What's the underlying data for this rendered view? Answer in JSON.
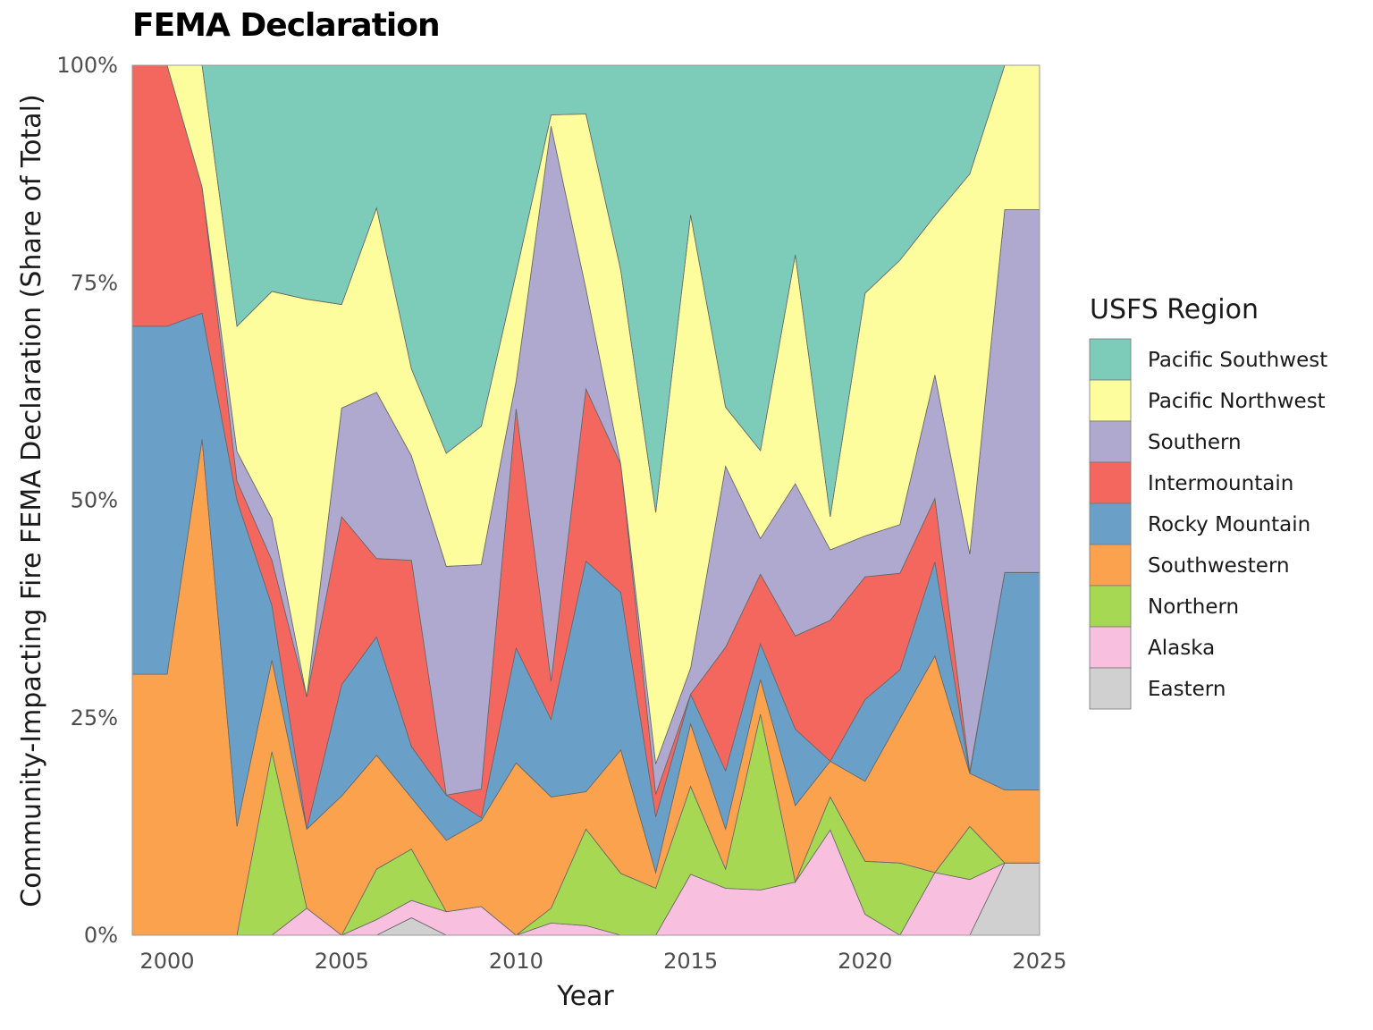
{
  "chart_data": {
    "type": "area",
    "stacked": true,
    "normalized": true,
    "title": "FEMA Declaration",
    "xlabel": "Year",
    "ylabel": "Community-Impacting Fire FEMA Declaration (Share of Total)",
    "xlim": [
      1999,
      2025
    ],
    "ylim": [
      0,
      1
    ],
    "x": [
      1999,
      2000,
      2001,
      2002,
      2003,
      2004,
      2005,
      2006,
      2007,
      2008,
      2009,
      2010,
      2011,
      2012,
      2013,
      2014,
      2015,
      2016,
      2017,
      2018,
      2019,
      2020,
      2021,
      2022,
      2023,
      2024,
      2025
    ],
    "x_ticks": [
      2000,
      2005,
      2010,
      2015,
      2020,
      2025
    ],
    "y_ticks": [
      0,
      0.25,
      0.5,
      0.75,
      1
    ],
    "y_tick_labels": [
      "0%",
      "25%",
      "50%",
      "75%",
      "100%"
    ],
    "grid": false,
    "legend_title": "USFS Region",
    "legend_position": "right",
    "series": [
      {
        "name": "Eastern",
        "color": "#d0d0d0",
        "values": [
          0,
          0,
          0,
          0,
          0,
          0,
          0,
          0,
          0.02,
          0,
          0,
          0,
          0,
          0,
          0,
          0,
          0,
          0,
          0,
          0,
          0,
          0,
          0,
          0,
          0,
          0.083,
          0.083
        ]
      },
      {
        "name": "Alaska",
        "color": "#f8c0de",
        "values": [
          0,
          0,
          0,
          0,
          0,
          0.031,
          0,
          0.018,
          0.02,
          0.027,
          0.033,
          0,
          0.014,
          0.011,
          0,
          0,
          0.07,
          0.054,
          0.052,
          0.061,
          0.121,
          0.024,
          0,
          0.072,
          0.064,
          0,
          0
        ]
      },
      {
        "name": "Northern",
        "color": "#a6d854",
        "values": [
          0,
          0,
          0,
          0,
          0.211,
          0,
          0,
          0.058,
          0.059,
          0,
          0,
          0,
          0.017,
          0.111,
          0.071,
          0.054,
          0.101,
          0.022,
          0.202,
          0,
          0.038,
          0.061,
          0.083,
          0,
          0.061,
          0,
          0
        ]
      },
      {
        "name": "Southwestern",
        "color": "#fba24f",
        "values": [
          0.3,
          0.3,
          0.57,
          0.125,
          0.105,
          0.091,
          0.16,
          0.131,
          0.059,
          0.082,
          0.099,
          0.198,
          0.128,
          0.043,
          0.142,
          0.018,
          0.072,
          0.046,
          0.04,
          0.088,
          0.041,
          0.092,
          0.166,
          0.249,
          0.061,
          0.084,
          0.084
        ]
      },
      {
        "name": "Rocky Mountain",
        "color": "#6a9fc8",
        "values": [
          0.4,
          0.4,
          0.145,
          0.375,
          0.063,
          0,
          0.128,
          0.136,
          0.059,
          0.052,
          0.003,
          0.132,
          0.089,
          0.265,
          0.181,
          0.064,
          0.034,
          0.067,
          0.041,
          0.088,
          0,
          0.094,
          0.056,
          0.108,
          0,
          0.25,
          0.25
        ]
      },
      {
        "name": "Intermountain",
        "color": "#f4675f",
        "values": [
          0.3,
          0.3,
          0.145,
          0.022,
          0.052,
          0.152,
          0.193,
          0.09,
          0.214,
          0,
          0.033,
          0.275,
          0.044,
          0.198,
          0.147,
          0.026,
          0,
          0.142,
          0.08,
          0.107,
          0.162,
          0.141,
          0.111,
          0.073,
          0.002,
          0,
          0
        ]
      },
      {
        "name": "Southern",
        "color": "#afa8cf",
        "values": [
          0,
          0,
          0,
          0.034,
          0.048,
          0,
          0.125,
          0.191,
          0.12,
          0.263,
          0.258,
          0.032,
          0.638,
          0.115,
          0,
          0.035,
          0.03,
          0.208,
          0.041,
          0.175,
          0.081,
          0.047,
          0.056,
          0.142,
          0.25,
          0.417,
          0.417
        ]
      },
      {
        "name": "Pacific Northwest",
        "color": "#fefd9e",
        "values": [
          0,
          0.1,
          0.14,
          0.144,
          0.261,
          0.457,
          0.119,
          0.212,
          0.1,
          0.13,
          0.159,
          0.124,
          0.013,
          0.201,
          0.223,
          0.289,
          0.521,
          0.068,
          0.101,
          0.263,
          0.038,
          0.279,
          0.304,
          0.183,
          0.437,
          0.166,
          0.166
        ]
      },
      {
        "name": "Pacific Southwest",
        "color": "#7dcbb9",
        "values": [
          0,
          0,
          0,
          0.3,
          0.26,
          0.269,
          0.275,
          0.164,
          0.369,
          0.446,
          0.415,
          0.239,
          0.057,
          0.056,
          0.236,
          0.514,
          0.172,
          0.393,
          0.443,
          0.218,
          0.519,
          0.262,
          0.224,
          0.173,
          0.125,
          0,
          0
        ]
      }
    ]
  }
}
